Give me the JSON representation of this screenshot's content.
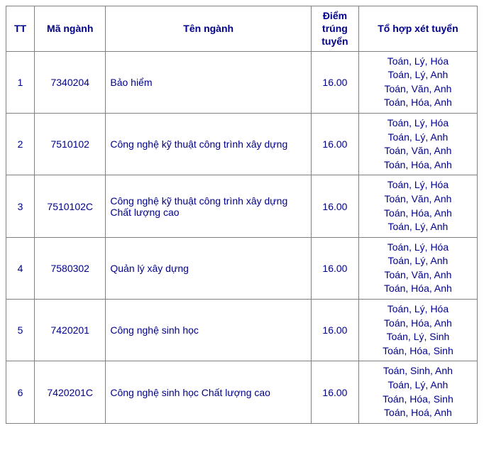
{
  "header": {
    "tt": "TT",
    "ma": "Mã ngành",
    "ten": "Tên ngành",
    "diem": "Điểm trúng tuyển",
    "tohop": "Tổ hợp xét tuyển"
  },
  "rows": [
    {
      "tt": "1",
      "ma": "7340204",
      "ten": "Bảo hiểm",
      "diem": "16.00",
      "tohop": [
        "Toán, Lý, Hóa",
        "Toán, Lý, Anh",
        "Toán, Văn, Anh",
        "Toán, Hóa, Anh"
      ]
    },
    {
      "tt": "2",
      "ma": "7510102",
      "ten": "Công nghệ kỹ thuật công trình xây dựng",
      "diem": "16.00",
      "tohop": [
        "Toán, Lý, Hóa",
        "Toán, Lý, Anh",
        "Toán, Văn, Anh",
        "Toán, Hóa, Anh"
      ]
    },
    {
      "tt": "3",
      "ma": "7510102C",
      "ten": "Công nghệ kỹ thuật công trình xây dựng Chất lượng cao",
      "diem": "16.00",
      "tohop": [
        "Toán, Lý, Hóa",
        "Toán, Văn, Anh",
        "Toán, Hóa, Anh",
        "Toán, Lý, Anh"
      ]
    },
    {
      "tt": "4",
      "ma": "7580302",
      "ten": "Quản lý xây dựng",
      "diem": "16.00",
      "tohop": [
        "Toán, Lý, Hóa",
        "Toán, Lý, Anh",
        "Toán, Văn, Anh",
        "Toán, Hóa, Anh"
      ]
    },
    {
      "tt": "5",
      "ma": "7420201",
      "ten": "Công nghệ sinh học",
      "diem": "16.00",
      "tohop": [
        "Toán, Lý, Hóa",
        "Toán, Hóa, Anh",
        "Toán, Lý, Sinh",
        "Toán, Hóa, Sinh"
      ]
    },
    {
      "tt": "6",
      "ma": "7420201C",
      "ten": "Công nghệ sinh học Chất lượng cao",
      "diem": "16.00",
      "tohop": [
        "Toán, Sinh, Anh",
        "Toán, Lý, Anh",
        "Toán, Hóa, Sinh",
        "Toán, Hoá, Anh"
      ]
    }
  ],
  "colors": {
    "text": "#00008b",
    "border": "#808080",
    "background": "#ffffff"
  },
  "font": {
    "family": "Arial",
    "size_pt": 14,
    "header_weight": "bold"
  }
}
